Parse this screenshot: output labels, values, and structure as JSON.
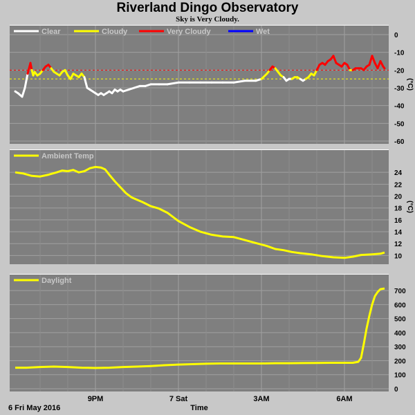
{
  "header": {
    "title": "Riverland Dingo Observatory",
    "subtitle": "Sky is Very Cloudy."
  },
  "footer": {
    "date_label": "6 Fri May 2016",
    "axis_label": "Time"
  },
  "chart_data": [
    {
      "type": "line",
      "id": "sky",
      "unit": "(°C)",
      "ylim": [
        -60,
        0
      ],
      "yticks": [
        0,
        -10,
        -20,
        -30,
        -40,
        -50,
        -60
      ],
      "x_range_hours": [
        18,
        31.5
      ],
      "xticks": [
        {
          "hour": 21,
          "label": "9PM"
        },
        {
          "hour": 24,
          "label": "7 Sat"
        },
        {
          "hour": 27,
          "label": "3AM"
        },
        {
          "hour": 30,
          "label": "6AM"
        }
      ],
      "grid": true,
      "legend": [
        {
          "name": "Clear",
          "color": "#ffffff"
        },
        {
          "name": "Cloudy",
          "color": "#ffff00"
        },
        {
          "name": "Very Cloudy",
          "color": "#ff0000"
        },
        {
          "name": "Wet",
          "color": "#0000ff"
        }
      ],
      "thresholds": [
        {
          "value": -20,
          "color": "#ff0000"
        },
        {
          "value": -25,
          "color": "#ffff00"
        }
      ],
      "series": [
        {
          "x": [
            18.1,
            18.2,
            18.35,
            18.45,
            18.55,
            18.65,
            18.7,
            18.75,
            18.8,
            18.9,
            19.0,
            19.1,
            19.2,
            19.3,
            19.4,
            19.5,
            19.6,
            19.7,
            19.8,
            19.9,
            20.0,
            20.1,
            20.2,
            20.3,
            20.4,
            20.5,
            20.6,
            20.7,
            20.8,
            20.9,
            21.0,
            21.1,
            21.2,
            21.3,
            21.4,
            21.5,
            21.6,
            21.7,
            21.8,
            21.9,
            22.0,
            22.2,
            22.4,
            22.6,
            22.8,
            23.0,
            23.3,
            23.6,
            24.0,
            24.4,
            24.8,
            25.2,
            25.6,
            26.0,
            26.4,
            26.8,
            27.0,
            27.2,
            27.3,
            27.4,
            27.5,
            27.6,
            27.7,
            27.8,
            27.9,
            28.0,
            28.1,
            28.2,
            28.3,
            28.4,
            28.5,
            28.6,
            28.7,
            28.8,
            28.9,
            29.0,
            29.1,
            29.2,
            29.3,
            29.4,
            29.5,
            29.6,
            29.7,
            29.8,
            29.9,
            30.0,
            30.1,
            30.2,
            30.3,
            30.4,
            30.5,
            30.6,
            30.7,
            30.8,
            30.9,
            31.0,
            31.1,
            31.2,
            31.3,
            31.4,
            31.45
          ],
          "y": [
            -32,
            -33,
            -35,
            -30,
            -22,
            -16,
            -20,
            -23,
            -21,
            -23,
            -22,
            -20,
            -18,
            -17,
            -19,
            -21,
            -22,
            -23,
            -21,
            -20,
            -23,
            -25,
            -22,
            -23,
            -24,
            -22,
            -24,
            -30,
            -31,
            -32,
            -33,
            -34,
            -33,
            -34,
            -33,
            -32,
            -33,
            -31,
            -32,
            -31,
            -32,
            -31,
            -30,
            -29,
            -29,
            -28,
            -28,
            -28,
            -27,
            -27,
            -27,
            -27,
            -27,
            -27,
            -26,
            -26,
            -25,
            -22,
            -20,
            -18,
            -19,
            -21,
            -23,
            -24,
            -26,
            -25,
            -25,
            -24,
            -24,
            -25,
            -26,
            -25,
            -24,
            -22,
            -23,
            -20,
            -17,
            -16,
            -17,
            -15,
            -14,
            -12,
            -16,
            -17,
            -18,
            -16,
            -17,
            -20,
            -20,
            -19,
            -19,
            -19,
            -20,
            -18,
            -17,
            -12,
            -16,
            -19,
            -15,
            -18,
            -19
          ]
        }
      ]
    },
    {
      "type": "line",
      "id": "ambient",
      "unit": "(°C)",
      "ylim": [
        9,
        26
      ],
      "yticks": [
        24,
        22,
        20,
        18,
        16,
        14,
        12,
        10
      ],
      "x_range_hours": [
        18,
        31.5
      ],
      "grid": true,
      "legend": [
        {
          "name": "Ambient Temp",
          "color": "#ffff00"
        }
      ],
      "series": [
        {
          "x": [
            18.1,
            18.4,
            18.7,
            19.0,
            19.3,
            19.6,
            19.8,
            20.0,
            20.2,
            20.4,
            20.6,
            20.8,
            21.0,
            21.2,
            21.35,
            21.5,
            21.7,
            21.9,
            22.1,
            22.3,
            22.5,
            22.7,
            23.0,
            23.3,
            23.6,
            24.0,
            24.4,
            24.8,
            25.2,
            25.6,
            26.0,
            26.4,
            26.8,
            27.2,
            27.5,
            27.8,
            28.1,
            28.4,
            28.8,
            29.2,
            29.6,
            30.0,
            30.3,
            30.6,
            31.0,
            31.3,
            31.45
          ],
          "y": [
            24.0,
            23.8,
            23.4,
            23.3,
            23.6,
            24.0,
            24.3,
            24.2,
            24.4,
            24.0,
            24.2,
            24.7,
            24.9,
            24.8,
            24.5,
            23.6,
            22.5,
            21.5,
            20.5,
            19.8,
            19.4,
            19.0,
            18.3,
            17.9,
            17.2,
            15.8,
            14.8,
            14.0,
            13.5,
            13.2,
            13.1,
            12.6,
            12.1,
            11.6,
            11.1,
            10.9,
            10.6,
            10.4,
            10.2,
            9.9,
            9.7,
            9.6,
            9.8,
            10.1,
            10.2,
            10.3,
            10.5
          ]
        }
      ]
    },
    {
      "type": "line",
      "id": "daylight",
      "unit": "",
      "ylim": [
        0,
        750
      ],
      "yticks": [
        700,
        600,
        500,
        400,
        300,
        200,
        100,
        0
      ],
      "x_range_hours": [
        18,
        31.5
      ],
      "grid": true,
      "legend": [
        {
          "name": "Daylight",
          "color": "#ffff00"
        }
      ],
      "series": [
        {
          "x": [
            18.1,
            18.5,
            19.0,
            19.5,
            20.0,
            20.5,
            21.0,
            21.5,
            22.0,
            22.5,
            23.0,
            23.5,
            24.0,
            24.5,
            25.0,
            25.5,
            26.0,
            26.5,
            27.0,
            27.5,
            28.0,
            28.5,
            29.0,
            29.5,
            30.0,
            30.3,
            30.5,
            30.6,
            30.7,
            30.8,
            30.9,
            31.0,
            31.1,
            31.2,
            31.3,
            31.45
          ],
          "y": [
            150,
            150,
            155,
            158,
            155,
            150,
            148,
            150,
            155,
            158,
            162,
            168,
            172,
            175,
            178,
            180,
            180,
            180,
            180,
            182,
            182,
            183,
            184,
            185,
            185,
            185,
            192,
            220,
            320,
            430,
            520,
            600,
            660,
            690,
            710,
            715
          ]
        }
      ]
    }
  ]
}
